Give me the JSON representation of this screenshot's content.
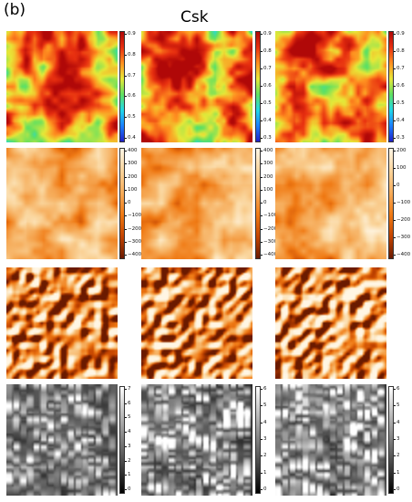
{
  "panel_label": "(b)",
  "title": "Csk",
  "colormaps": {
    "jet_like": [
      "#2020c8",
      "#1a80ff",
      "#20d8e8",
      "#60e060",
      "#e8e838",
      "#ff9020",
      "#e83010",
      "#b00808"
    ],
    "hot_like": [
      "#6a1a00",
      "#c44400",
      "#f07a14",
      "#f6ac5a",
      "#fad59c",
      "#fff6e4"
    ],
    "gray": [
      "#000000",
      "#ffffff"
    ]
  },
  "rows": [
    {
      "name": "similarity-map",
      "colormap": "jet_like",
      "panels": [
        {
          "ticks": [
            "0.9",
            "0.8",
            "0.7",
            "0.6",
            "0.5",
            "0.4"
          ]
        },
        {
          "ticks": [
            "0.9",
            "0.8",
            "0.7",
            "0.6",
            "0.5",
            "0.4",
            "0.3"
          ]
        },
        {
          "ticks": [
            "0.9",
            "0.8",
            "0.7",
            "0.6",
            "0.5",
            "0.4",
            "0.3"
          ]
        }
      ]
    },
    {
      "name": "elevation-map",
      "colormap": "hot_like",
      "panels": [
        {
          "ticks": [
            "400",
            "300",
            "200",
            "100",
            "0",
            "−100",
            "−200",
            "−300",
            "−400"
          ]
        },
        {
          "ticks": [
            "400",
            "300",
            "200",
            "100",
            "0",
            "−100",
            "−200",
            "−300",
            "−400"
          ]
        },
        {
          "ticks": [
            "200",
            "100",
            "0",
            "−100",
            "−200",
            "−300",
            "−400"
          ]
        }
      ]
    },
    {
      "name": "hillshade-map",
      "colormap": "hot_like",
      "panels": [
        {
          "ticks": []
        },
        {
          "ticks": []
        },
        {
          "ticks": []
        }
      ]
    },
    {
      "name": "slope-map",
      "colormap": "gray",
      "panels": [
        {
          "ticks": [
            "7",
            "6",
            "5",
            "4",
            "3",
            "2",
            "1",
            "0"
          ]
        },
        {
          "ticks": [
            "6",
            "5",
            "4",
            "3",
            "2",
            "1",
            "0"
          ]
        },
        {
          "ticks": [
            "6",
            "5",
            "4",
            "3",
            "2",
            "1",
            "0"
          ]
        }
      ]
    }
  ]
}
